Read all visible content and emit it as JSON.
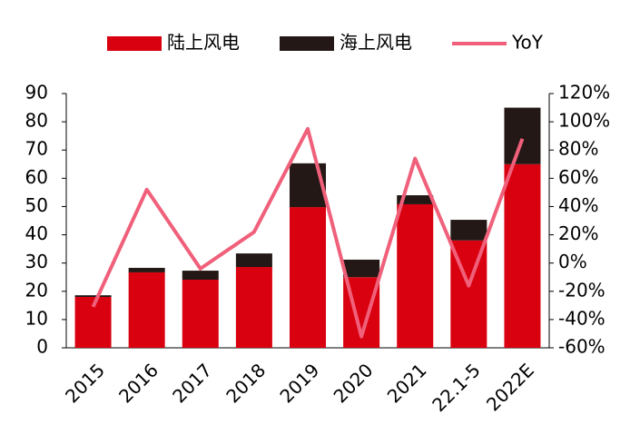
{
  "chart_data": {
    "type": "bar",
    "categories": [
      "2015",
      "2016",
      "2017",
      "2018",
      "2019",
      "2020",
      "2021",
      "22.1-5",
      "2022E"
    ],
    "series": [
      {
        "name": "陆上风电",
        "color": "#d9000f",
        "type": "bar",
        "values": [
          18,
          26.7,
          24.1,
          28.6,
          49.8,
          25,
          50.8,
          38,
          65
        ]
      },
      {
        "name": "海上风电",
        "color": "#231815",
        "type": "bar",
        "values": [
          0.6,
          1.6,
          3.2,
          4.8,
          15.5,
          6.2,
          3.2,
          7.3,
          20
        ]
      },
      {
        "name": "YoY",
        "color": "#f0607a",
        "type": "line",
        "axis": "y2",
        "values": [
          -31,
          52,
          -4,
          22,
          95,
          -52,
          74,
          -16,
          88
        ]
      }
    ],
    "ylim": [
      0,
      90
    ],
    "yticks": [
      0,
      10,
      20,
      30,
      40,
      50,
      60,
      70,
      80,
      90
    ],
    "y2lim": [
      -60,
      120
    ],
    "y2ticks": [
      {
        "value": -60,
        "label": "-60%"
      },
      {
        "value": -40,
        "label": "-40%"
      },
      {
        "value": -20,
        "label": "-20%"
      },
      {
        "value": 0,
        "label": "0%"
      },
      {
        "value": 20,
        "label": "20%"
      },
      {
        "value": 40,
        "label": "40%"
      },
      {
        "value": 60,
        "label": "60%"
      },
      {
        "value": 80,
        "label": "80%"
      },
      {
        "value": 100,
        "label": "100%"
      },
      {
        "value": 120,
        "label": "120%"
      }
    ],
    "legend": "top"
  }
}
